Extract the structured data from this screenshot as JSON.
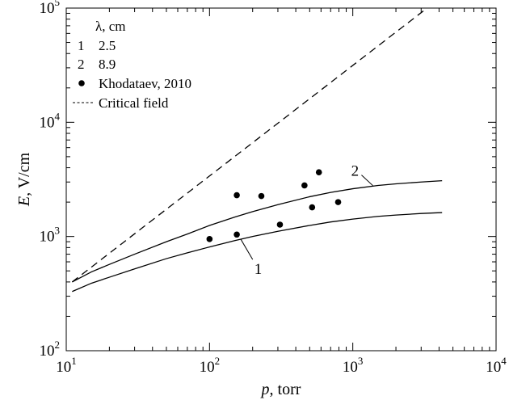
{
  "chart_data": {
    "type": "line",
    "xscale": "log",
    "yscale": "log",
    "xlim": [
      10,
      10000
    ],
    "ylim": [
      100,
      100000
    ],
    "x_ticks": [
      {
        "base": "10",
        "exp": "1",
        "value": 10
      },
      {
        "base": "10",
        "exp": "2",
        "value": 100
      },
      {
        "base": "10",
        "exp": "3",
        "value": 1000
      },
      {
        "base": "10",
        "exp": "4",
        "value": 10000
      }
    ],
    "y_ticks": [
      {
        "base": "10",
        "exp": "2",
        "value": 100
      },
      {
        "base": "10",
        "exp": "3",
        "value": 1000
      },
      {
        "base": "10",
        "exp": "4",
        "value": 10000
      },
      {
        "base": "10",
        "exp": "5",
        "value": 100000
      }
    ],
    "xlabel_italic": "p",
    "xlabel_unit": ", torr",
    "ylabel_italic": "E",
    "ylabel_unit": ",  V/cm",
    "legend": {
      "header": "λ, cm",
      "entries": [
        {
          "key": "1",
          "label": "2.5"
        },
        {
          "key": "2",
          "label": "8.9"
        },
        {
          "key": "●",
          "label": "Khodataev, 2010"
        },
        {
          "key": "-----",
          "label": "Critical field"
        }
      ]
    },
    "series": [
      {
        "name": "1",
        "style": "solid",
        "x": [
          11,
          15,
          20,
          30,
          50,
          70,
          100,
          150,
          200,
          300,
          500,
          700,
          1000,
          1500,
          2000,
          3000,
          4200
        ],
        "y": [
          330,
          390,
          440,
          520,
          640,
          720,
          810,
          920,
          1000,
          1110,
          1250,
          1340,
          1420,
          1500,
          1540,
          1590,
          1620
        ]
      },
      {
        "name": "2",
        "style": "solid",
        "x": [
          11,
          15,
          20,
          30,
          50,
          70,
          100,
          150,
          200,
          300,
          500,
          700,
          1000,
          1500,
          2000,
          3000,
          4200
        ],
        "y": [
          400,
          490,
          570,
          700,
          900,
          1050,
          1250,
          1480,
          1650,
          1900,
          2230,
          2430,
          2620,
          2800,
          2890,
          3000,
          3080
        ]
      },
      {
        "name": "Critical field",
        "style": "dashed",
        "x": [
          11,
          3300
        ],
        "y": [
          400,
          100000
        ]
      }
    ],
    "points": {
      "name": "Khodataev, 2010",
      "x": [
        100,
        155,
        155,
        230,
        310,
        460,
        520,
        580,
        790
      ],
      "y": [
        950,
        1040,
        2300,
        2260,
        1270,
        2800,
        1800,
        3650,
        2000
      ]
    },
    "curve_labels": [
      {
        "text": "1",
        "x": 200,
        "y": 650
      },
      {
        "text": "2",
        "x": 1000,
        "y": 3400
      }
    ]
  }
}
